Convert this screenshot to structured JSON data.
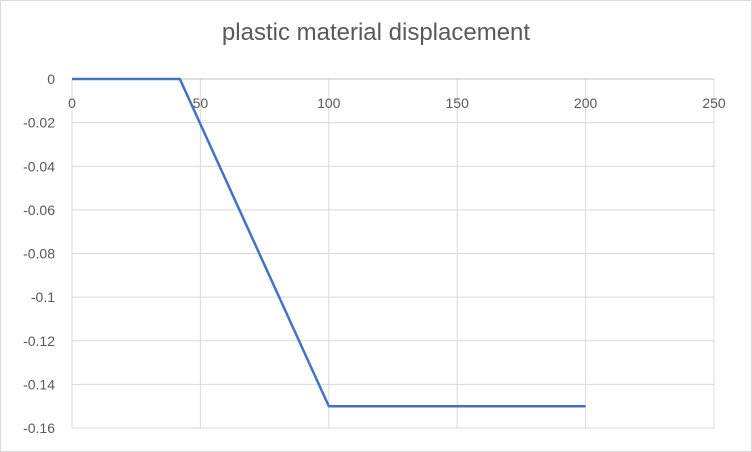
{
  "chart_data": {
    "type": "line",
    "title": "plastic material displacement",
    "xlabel": "",
    "ylabel": "",
    "xlim": [
      0,
      250
    ],
    "ylim": [
      -0.16,
      0
    ],
    "x_ticks": [
      0,
      50,
      100,
      150,
      200,
      250
    ],
    "y_ticks": [
      0,
      -0.02,
      -0.04,
      -0.06,
      -0.08,
      -0.1,
      -0.12,
      -0.14,
      -0.16
    ],
    "x_tick_labels": [
      "0",
      "50",
      "100",
      "150",
      "200",
      "250"
    ],
    "y_tick_labels": [
      "0",
      "-0.02",
      "-0.04",
      "-0.06",
      "-0.08",
      "-0.1",
      "-0.12",
      "-0.14",
      "-0.16"
    ],
    "grid": true,
    "legend": "none",
    "series": [
      {
        "color": "#4472c4",
        "x": [
          0,
          42,
          100,
          200
        ],
        "y": [
          0,
          0,
          -0.15,
          -0.15
        ]
      }
    ]
  }
}
